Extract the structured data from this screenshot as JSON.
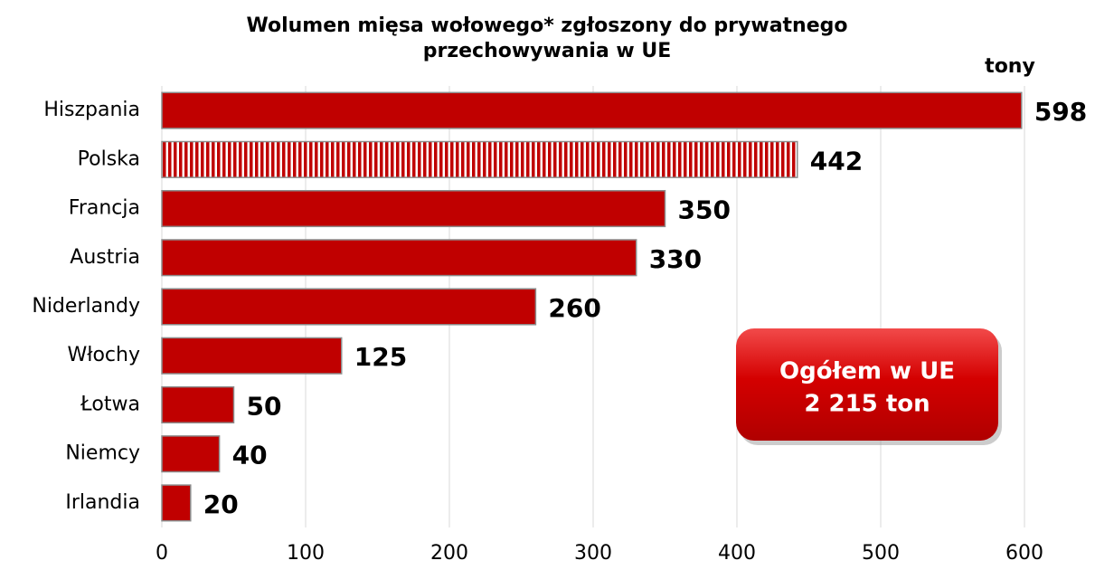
{
  "chart_data": {
    "type": "bar",
    "orientation": "horizontal",
    "title": [
      "Wolumen mięsa wołowego* zgłoszony do prywatnego",
      "przechowywania w UE"
    ],
    "unit_label": "tony",
    "categories": [
      "Hiszpania",
      "Polska",
      "Francja",
      "Austria",
      "Niderlandy",
      "Włochy",
      "Łotwa",
      "Niemcy",
      "Irlandia"
    ],
    "values": [
      598,
      442,
      350,
      330,
      260,
      125,
      50,
      40,
      20
    ],
    "hatched": [
      false,
      true,
      false,
      false,
      false,
      false,
      false,
      false,
      false
    ],
    "color": "#c00000",
    "xlim": [
      0,
      600
    ],
    "xticks": [
      0,
      100,
      200,
      300,
      400,
      500,
      600
    ],
    "grid": true,
    "annotation": [
      "Ogółem w UE",
      "2 215 ton"
    ]
  }
}
